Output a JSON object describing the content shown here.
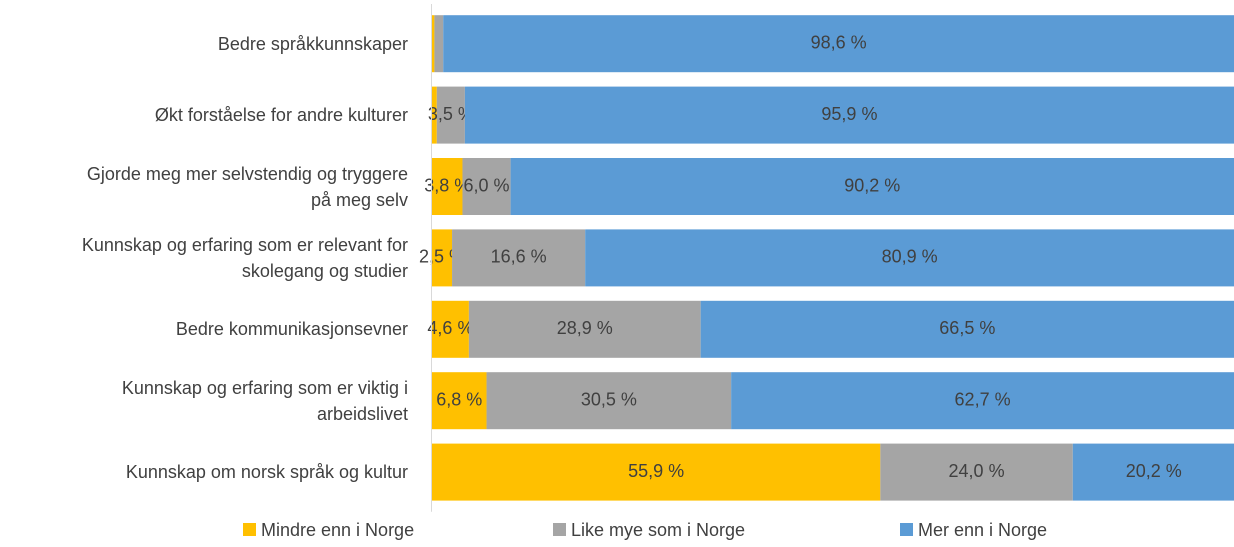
{
  "chart_data": {
    "type": "stacked_bar_horizontal",
    "categories": [
      "Bedre språkkunnskaper",
      "Økt forståelse for andre kulturer",
      "Gjorde meg mer selvstendig og tryggere\npå meg selv",
      "Kunnskap og erfaring som er relevant for\nskolegang og studier",
      "Bedre kommunikasjonsevner",
      "Kunnskap og erfaring som er viktig i\narbeidslivet",
      "Kunnskap om norsk språk og kultur"
    ],
    "series": [
      {
        "name": "Mindre enn i Norge",
        "color": "#FFC000",
        "values": [
          0.3,
          0.6,
          3.8,
          2.5,
          4.6,
          6.8,
          55.9
        ],
        "value_labels": [
          null,
          null,
          "3,8 %",
          "2,5 %",
          "4,6 %",
          "6,8 %",
          "55,9 %"
        ]
      },
      {
        "name": "Like mye som i Norge",
        "color": "#A5A5A5",
        "values": [
          1.1,
          3.5,
          6.0,
          16.6,
          28.9,
          30.5,
          24.0
        ],
        "value_labels": [
          null,
          "3,5 %",
          "6,0 %",
          "16,6 %",
          "28,9 %",
          "30,5 %",
          "24,0 %"
        ]
      },
      {
        "name": "Mer enn i Norge",
        "color": "#5B9BD5",
        "values": [
          98.6,
          95.9,
          90.2,
          80.9,
          66.5,
          62.7,
          20.2
        ],
        "value_labels": [
          "98,6 %",
          "95,9 %",
          "90,2 %",
          "80,9 %",
          "66,5 %",
          "62,7 %",
          "20,2 %"
        ]
      }
    ],
    "xlim": [
      0,
      100
    ],
    "legend": "bottom"
  }
}
